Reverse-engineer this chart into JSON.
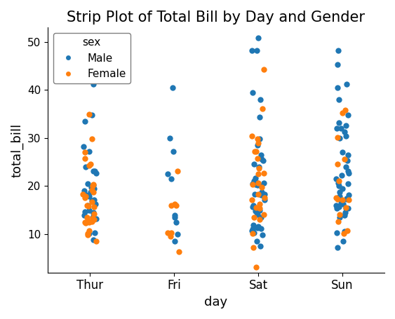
{
  "title": "Strip Plot of Total Bill by Day and Gender",
  "xlabel": "day",
  "ylabel": "total_bill",
  "days": [
    "Thur",
    "Fri",
    "Sat",
    "Sun"
  ],
  "male_color": "#1f77b4",
  "female_color": "#ff7f0e",
  "legend_title": "sex",
  "legend_labels": [
    "Male",
    "Female"
  ],
  "jitter_seed": 42,
  "jitter_strength": 0.08,
  "marker_size": 6,
  "ylim": [
    2,
    53
  ],
  "male_thur": [
    8.77,
    10.07,
    10.34,
    13.42,
    13.94,
    13.16,
    14.31,
    14.55,
    14.73,
    15.01,
    16.0,
    16.31,
    16.99,
    17.07,
    17.81,
    18.15,
    18.71,
    19.0,
    19.44,
    19.81,
    20.23,
    20.45,
    22.75,
    23.1,
    23.17,
    24.01,
    27.2,
    28.17,
    33.51,
    34.83,
    41.19
  ],
  "female_thur": [
    8.58,
    9.78,
    10.07,
    10.65,
    12.26,
    12.43,
    12.46,
    12.54,
    12.6,
    12.66,
    13.0,
    13.39,
    13.42,
    14.26,
    15.69,
    15.81,
    16.04,
    16.66,
    17.51,
    17.89,
    18.35,
    18.78,
    19.18,
    20.08,
    20.29,
    24.27,
    24.59,
    25.71,
    27.05,
    29.85,
    35.0
  ],
  "male_fri": [
    8.58,
    9.94,
    12.46,
    13.42,
    13.94,
    21.5,
    22.49,
    27.18,
    29.93,
    40.55
  ],
  "female_fri": [
    6.35,
    9.6,
    10.33,
    10.34,
    15.98,
    15.98,
    16.27,
    23.1
  ],
  "male_sat": [
    7.56,
    8.58,
    9.78,
    10.34,
    10.65,
    11.02,
    11.17,
    11.24,
    11.35,
    11.59,
    11.87,
    13.42,
    14.07,
    14.48,
    14.83,
    15.01,
    15.36,
    15.69,
    16.04,
    17.07,
    17.81,
    18.15,
    18.24,
    18.35,
    18.71,
    20.08,
    20.23,
    20.29,
    20.45,
    20.65,
    20.69,
    21.01,
    21.7,
    24.01,
    24.59,
    25.29,
    25.56,
    26.41,
    28.55,
    29.8,
    34.3,
    38.07,
    39.42,
    48.17,
    48.27,
    50.81
  ],
  "female_sat": [
    3.07,
    7.25,
    10.07,
    13.0,
    13.42,
    14.07,
    15.36,
    15.48,
    16.27,
    17.07,
    17.51,
    18.35,
    19.81,
    20.29,
    20.65,
    22.49,
    22.75,
    23.68,
    25.71,
    27.2,
    27.28,
    28.97,
    29.85,
    30.46,
    36.11,
    44.3
  ],
  "male_sun": [
    7.25,
    8.51,
    10.33,
    10.59,
    13.51,
    13.94,
    14.52,
    15.36,
    15.42,
    15.42,
    15.69,
    16.04,
    16.31,
    16.47,
    17.29,
    17.46,
    17.89,
    18.15,
    18.71,
    19.44,
    20.08,
    20.45,
    20.65,
    21.5,
    22.23,
    22.67,
    23.1,
    24.06,
    25.28,
    26.41,
    27.05,
    29.93,
    30.46,
    31.27,
    32.0,
    32.0,
    32.68,
    33.2,
    34.83,
    38.01,
    40.55,
    41.19,
    45.35,
    48.17
  ],
  "female_sun": [
    10.07,
    10.65,
    12.6,
    14.07,
    15.48,
    17.07,
    17.07,
    17.29,
    17.51,
    21.01,
    24.59,
    25.56,
    30.14,
    35.26,
    35.83
  ]
}
